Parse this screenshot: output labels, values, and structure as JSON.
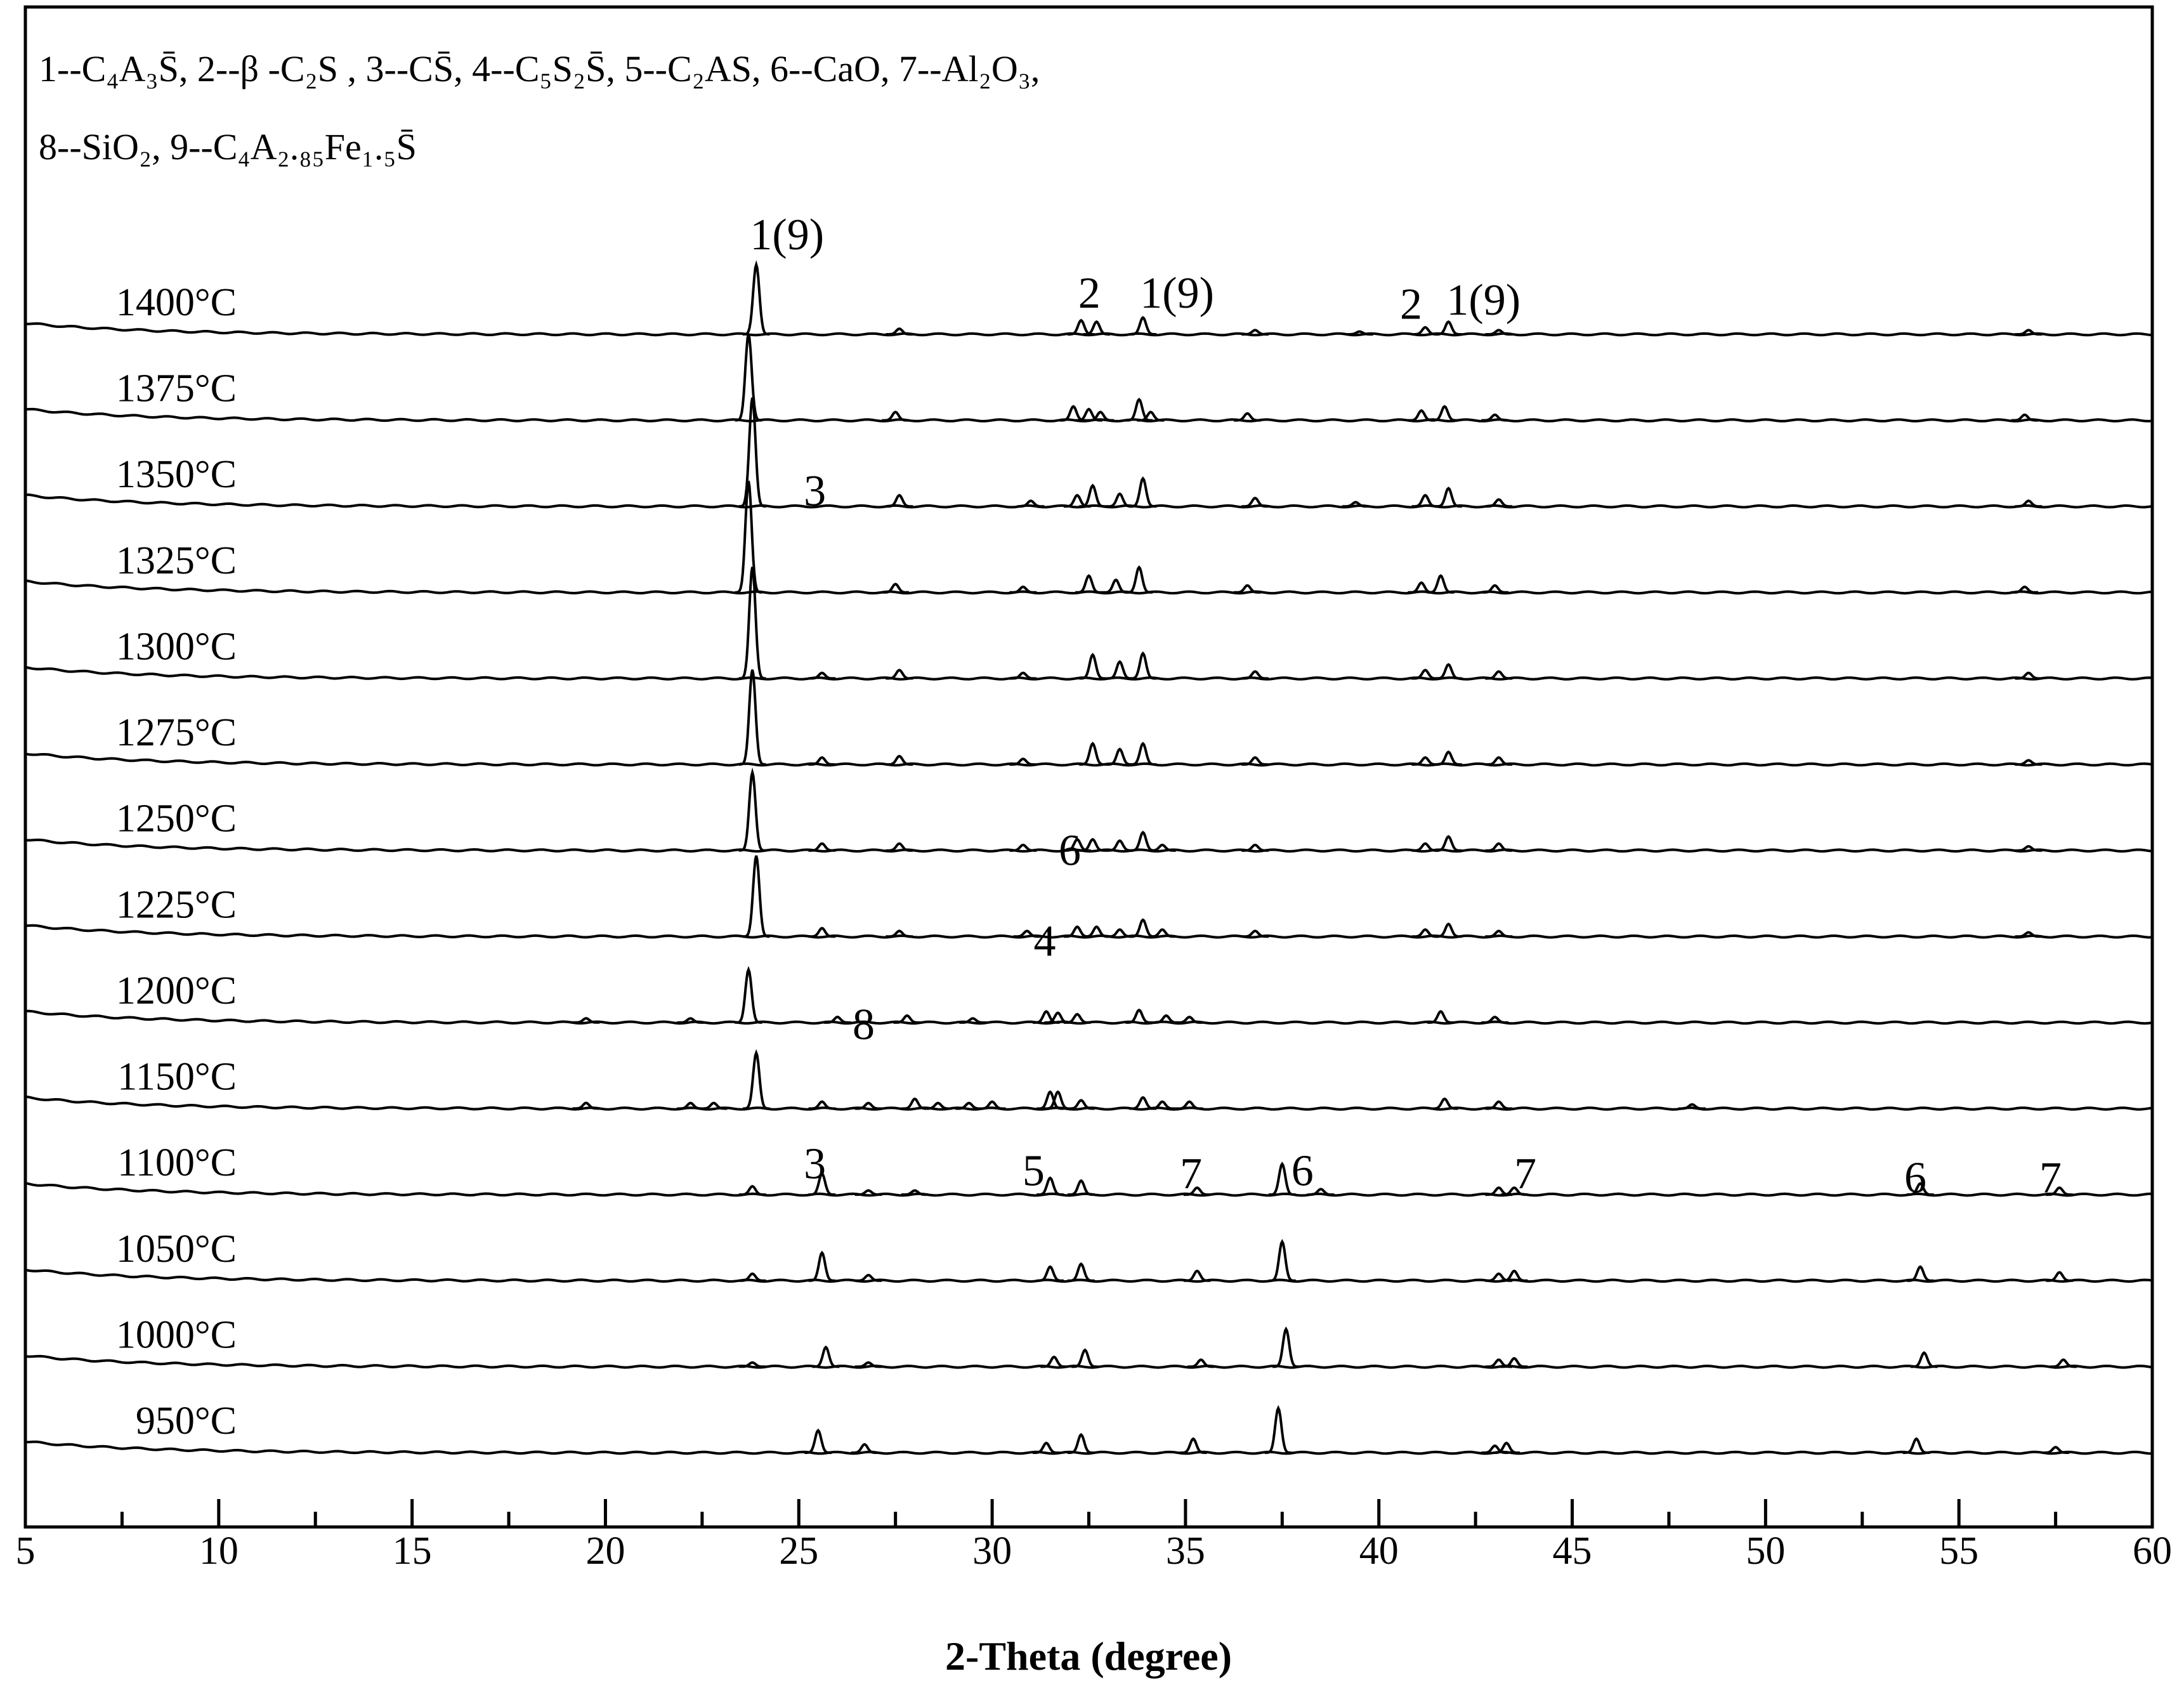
{
  "chart_data": {
    "type": "line",
    "legend_lines": [
      "1--C₄A₃S̄, 2--β  -C₂S , 3--CS̄, 4--C₅S₂S̄, 5--C₂AS,  6--CaO, 7--Al₂O₃,",
      "8--SiO₂, 9--C₄A₂.₈₅Fe₁.₅S̄"
    ],
    "x_label": "2-Theta (degree)",
    "color": "#000000",
    "xlim": [
      5,
      60
    ],
    "xticks": [
      5,
      10,
      15,
      20,
      25,
      30,
      35,
      40,
      45,
      50,
      55,
      60
    ],
    "xminorticks": [
      7.5,
      12.5,
      17.5,
      22.5,
      27.5,
      32.5,
      37.5,
      42.5,
      47.5,
      52.5,
      57.5
    ],
    "annotations": [
      "1(9)",
      "2",
      "1(9)",
      "2",
      "1(9)",
      "3",
      "6",
      "4",
      "8",
      "3",
      "5",
      "7",
      "6",
      "7",
      "6",
      "7"
    ],
    "series": [
      {
        "name": "1400°C",
        "x": [
          23.9,
          27.6,
          32.3,
          32.7,
          33.9,
          36.8,
          39.5,
          41.2,
          41.8,
          43.1,
          56.8
        ],
        "values": [
          50,
          4,
          10,
          9,
          12,
          3,
          2,
          5,
          9,
          3,
          3
        ]
      },
      {
        "name": "1375°C",
        "x": [
          23.7,
          27.5,
          32.1,
          32.5,
          32.8,
          33.8,
          34.1,
          36.6,
          41.1,
          41.7,
          43.0,
          56.7
        ],
        "values": [
          62,
          6,
          10,
          8,
          6,
          15,
          6,
          5,
          7,
          10,
          4,
          4
        ]
      },
      {
        "name": "1350°C",
        "x": [
          23.8,
          27.6,
          31.0,
          32.2,
          32.6,
          33.3,
          33.9,
          36.8,
          39.4,
          41.2,
          41.8,
          43.1,
          56.8
        ],
        "values": [
          78,
          8,
          4,
          8,
          15,
          9,
          20,
          6,
          3,
          8,
          13,
          5,
          4
        ]
      },
      {
        "name": "1325°C",
        "x": [
          23.7,
          27.5,
          30.8,
          32.5,
          33.2,
          33.8,
          36.6,
          41.1,
          41.6,
          43.0,
          56.7
        ],
        "values": [
          80,
          6,
          4,
          12,
          9,
          18,
          5,
          7,
          12,
          5,
          4
        ]
      },
      {
        "name": "1300°C",
        "x": [
          23.8,
          25.6,
          27.6,
          30.8,
          32.6,
          33.3,
          33.9,
          36.8,
          41.2,
          41.8,
          43.1,
          56.8
        ],
        "values": [
          80,
          4,
          6,
          4,
          17,
          12,
          18,
          5,
          6,
          10,
          5,
          4
        ]
      },
      {
        "name": "1275°C",
        "x": [
          23.8,
          25.6,
          27.6,
          30.8,
          32.6,
          33.3,
          33.9,
          36.8,
          41.2,
          41.8,
          43.1,
          56.8
        ],
        "values": [
          68,
          5,
          6,
          4,
          15,
          11,
          15,
          5,
          5,
          9,
          5,
          3
        ]
      },
      {
        "name": "1250°C",
        "x": [
          23.8,
          25.6,
          27.6,
          30.8,
          32.2,
          32.6,
          33.3,
          33.9,
          34.4,
          36.8,
          41.2,
          41.8,
          43.1,
          56.8
        ],
        "values": [
          56,
          5,
          5,
          4,
          8,
          8,
          7,
          13,
          4,
          4,
          5,
          10,
          5,
          3
        ]
      },
      {
        "name": "1225°C",
        "x": [
          23.9,
          25.6,
          27.6,
          30.9,
          32.2,
          32.7,
          33.3,
          33.9,
          34.4,
          36.8,
          41.2,
          41.8,
          43.1,
          56.8
        ],
        "values": [
          58,
          6,
          4,
          4,
          7,
          7,
          5,
          12,
          5,
          4,
          5,
          9,
          4,
          3
        ]
      },
      {
        "name": "1200°C",
        "x": [
          19.5,
          22.2,
          23.7,
          26.0,
          27.8,
          29.5,
          31.4,
          31.7,
          32.2,
          33.8,
          34.5,
          35.1,
          41.6,
          43.0
        ],
        "values": [
          3,
          3,
          38,
          4,
          5,
          3,
          8,
          7,
          6,
          9,
          5,
          4,
          8,
          4
        ]
      },
      {
        "name": "1150°C",
        "x": [
          19.5,
          22.2,
          22.8,
          23.9,
          25.6,
          26.8,
          28.0,
          28.6,
          29.4,
          30.0,
          31.5,
          31.7,
          32.3,
          33.9,
          34.4,
          35.1,
          41.7,
          43.1,
          48.1
        ],
        "values": [
          4,
          4,
          4,
          40,
          5,
          4,
          7,
          4,
          4,
          5,
          12,
          12,
          6,
          8,
          5,
          5,
          7,
          5,
          3
        ]
      },
      {
        "name": "1100°C",
        "x": [
          23.8,
          25.6,
          26.8,
          28.0,
          31.5,
          32.3,
          35.3,
          37.5,
          38.5,
          43.1,
          43.5,
          54.0,
          57.6
        ],
        "values": [
          6,
          15,
          3,
          3,
          12,
          10,
          5,
          22,
          4,
          5,
          5,
          8,
          5
        ]
      },
      {
        "name": "1050°C",
        "x": [
          23.8,
          25.6,
          26.8,
          31.5,
          32.3,
          35.3,
          37.5,
          43.1,
          43.5,
          54.0,
          57.6
        ],
        "values": [
          5,
          20,
          4,
          10,
          12,
          7,
          28,
          5,
          7,
          10,
          6
        ]
      },
      {
        "name": "1000°C",
        "x": [
          23.8,
          25.7,
          26.8,
          31.6,
          32.4,
          35.4,
          37.6,
          43.1,
          43.5,
          54.1,
          57.7
        ],
        "values": [
          3,
          14,
          3,
          7,
          12,
          5,
          27,
          5,
          6,
          10,
          5
        ]
      },
      {
        "name": "950°C",
        "x": [
          25.5,
          26.7,
          31.4,
          32.3,
          35.2,
          37.4,
          43.0,
          43.3,
          53.9,
          57.5
        ],
        "values": [
          16,
          6,
          7,
          13,
          10,
          32,
          5,
          7,
          10,
          4
        ]
      }
    ]
  }
}
